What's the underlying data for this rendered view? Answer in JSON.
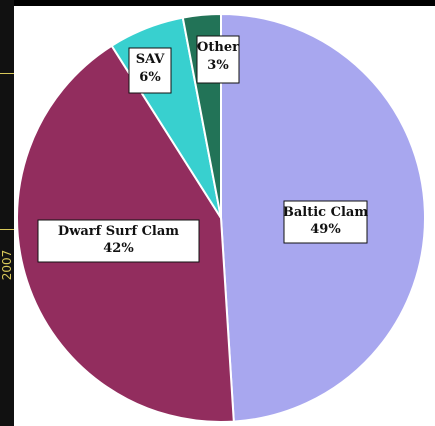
{
  "side_label": "2007",
  "chart_data": {
    "type": "pie",
    "title": "",
    "start_angle_deg": -90,
    "direction": "clockwise",
    "slices": [
      {
        "label": "Baltic Clam",
        "value_text": "49%",
        "value": 49,
        "color": "#a8a7ef"
      },
      {
        "label": "Dwarf Surf Clam",
        "value_text": "42%",
        "value": 42,
        "color": "#922d5e"
      },
      {
        "label": "SAV",
        "value_text": "6%",
        "value": 6,
        "color": "#38d0cf"
      },
      {
        "label": "Other",
        "value_text": "3%",
        "value": 3,
        "color": "#227357"
      }
    ],
    "legend": "none",
    "grid": false
  }
}
